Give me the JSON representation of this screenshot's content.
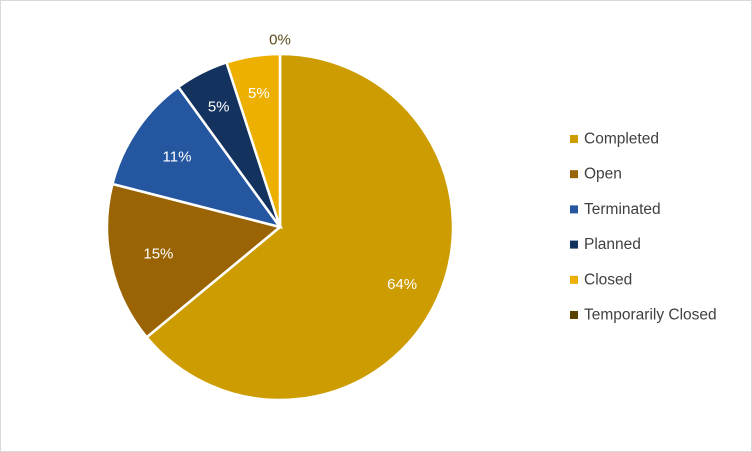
{
  "chart_data": {
    "type": "pie",
    "title": "",
    "legend_position": "right",
    "categories": [
      "Completed",
      "Open",
      "Terminated",
      "Planned",
      "Closed",
      "Temporarily Closed"
    ],
    "values": [
      64,
      15,
      11,
      5,
      5,
      0
    ],
    "data_labels": [
      "64%",
      "15%",
      "11%",
      "5%",
      "5%",
      "0%"
    ],
    "colors": [
      "#CC9C00",
      "#9A6304",
      "#2556A0",
      "#14325E",
      "#EDB000",
      "#5A4200"
    ],
    "label_colors": [
      "#ffffff",
      "#ffffff",
      "#ffffff",
      "#ffffff",
      "#ffffff",
      "#5a4a1a"
    ]
  }
}
